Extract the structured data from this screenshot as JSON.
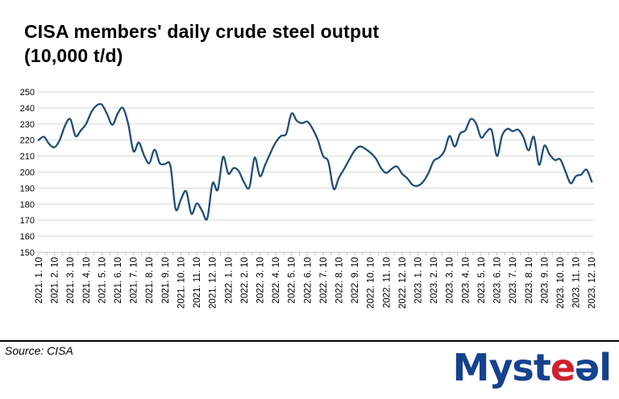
{
  "header": {
    "title_line1": "CISA members' daily crude steel output",
    "title_line2": "(10,000 t/d)"
  },
  "footer": {
    "source_label": "Source: CISA",
    "logo": {
      "part_myst": "Myst",
      "part_e_red": "e",
      "part_e_blue": "ə",
      "part_l": "l",
      "blue": "#15418e",
      "red": "#cf2030"
    }
  },
  "chart_data": {
    "type": "line",
    "title": "CISA members' daily crude steel output (10,000 t/d)",
    "xlabel": "",
    "ylabel": "",
    "ylim": [
      150,
      250
    ],
    "yticks": [
      150,
      160,
      170,
      180,
      190,
      200,
      210,
      220,
      230,
      240,
      250
    ],
    "grid": "horizontal-only",
    "legend_position": "none",
    "line_color": "#1f4e79",
    "gridline_color": "#d9d9d9",
    "axis_color": "#bfbfbf",
    "x_tick_labels": [
      "2021. 1. 10",
      "2021. 2. 10",
      "2021. 3. 10",
      "2021. 4. 10",
      "2021. 5. 10",
      "2021. 6. 10",
      "2021. 7. 10",
      "2021. 8. 10",
      "2021. 9. 10",
      "2021. 10. 10",
      "2021. 11. 10",
      "2021. 12. 10",
      "2022. 1. 10",
      "2022. 2. 10",
      "2022. 3. 10",
      "2022. 4. 10",
      "2022. 5. 10",
      "2022. 6. 10",
      "2022. 7. 10",
      "2022. 8. 10",
      "2022. 9. 10",
      "2022. 10. 10",
      "2022. 11. 10",
      "2022. 12. 10",
      "2023. 1. 10",
      "2023. 2. 10",
      "2023. 3. 10",
      "2023. 4. 10",
      "2023. 5. 10",
      "2023. 6. 10",
      "2023. 7. 10",
      "2023. 8. 10",
      "2023. 9. 10",
      "2023. 10. 10",
      "2023. 11. 10",
      "2023. 12. 10"
    ],
    "points_per_month": 3,
    "series": [
      {
        "name": "CISA members' daily crude steel output (10,000 t/d)",
        "dates": [
          "2021.1.10",
          "2021.1.20",
          "2021.1.31",
          "2021.2.10",
          "2021.2.20",
          "2021.2.28",
          "2021.3.10",
          "2021.3.20",
          "2021.3.31",
          "2021.4.10",
          "2021.4.20",
          "2021.4.30",
          "2021.5.10",
          "2021.5.20",
          "2021.5.31",
          "2021.6.10",
          "2021.6.20",
          "2021.6.30",
          "2021.7.10",
          "2021.7.20",
          "2021.7.31",
          "2021.8.10",
          "2021.8.20",
          "2021.8.31",
          "2021.9.10",
          "2021.9.20",
          "2021.9.30",
          "2021.10.10",
          "2021.10.20",
          "2021.10.31",
          "2021.11.10",
          "2021.11.20",
          "2021.11.30",
          "2021.12.10",
          "2021.12.20",
          "2021.12.31",
          "2022.1.10",
          "2022.1.20",
          "2022.1.31",
          "2022.2.10",
          "2022.2.20",
          "2022.2.28",
          "2022.3.10",
          "2022.3.20",
          "2022.3.31",
          "2022.4.10",
          "2022.4.20",
          "2022.4.30",
          "2022.5.10",
          "2022.5.20",
          "2022.5.31",
          "2022.6.10",
          "2022.6.20",
          "2022.6.30",
          "2022.7.10",
          "2022.7.20",
          "2022.7.31",
          "2022.8.10",
          "2022.8.20",
          "2022.8.31",
          "2022.9.10",
          "2022.9.20",
          "2022.9.30",
          "2022.10.10",
          "2022.10.20",
          "2022.10.31",
          "2022.11.10",
          "2022.11.20",
          "2022.11.30",
          "2022.12.10",
          "2022.12.20",
          "2022.12.31",
          "2023.1.10",
          "2023.1.20",
          "2023.1.31",
          "2023.2.10",
          "2023.2.20",
          "2023.2.28",
          "2023.3.10",
          "2023.3.20",
          "2023.3.31",
          "2023.4.10",
          "2023.4.20",
          "2023.4.30",
          "2023.5.10",
          "2023.5.20",
          "2023.5.31",
          "2023.6.10",
          "2023.6.20",
          "2023.6.30",
          "2023.7.10",
          "2023.7.20",
          "2023.7.31",
          "2023.8.10",
          "2023.8.20",
          "2023.8.31",
          "2023.9.10",
          "2023.9.20",
          "2023.9.30",
          "2023.10.10",
          "2023.10.20",
          "2023.10.31",
          "2023.11.10",
          "2023.11.20",
          "2023.11.30",
          "2023.12.10"
        ],
        "values": [
          220,
          222,
          217.5,
          215.5,
          220,
          229,
          233,
          222.5,
          226,
          230,
          237.5,
          241.5,
          242,
          236,
          229.5,
          236.5,
          240,
          230,
          213,
          218.5,
          210.5,
          205.5,
          214,
          205.5,
          205,
          204,
          177,
          183,
          188,
          174,
          180.5,
          176,
          171,
          193,
          189,
          209.5,
          199,
          202.5,
          200.5,
          193.5,
          190.5,
          209,
          197.5,
          204.5,
          212,
          218.5,
          222.5,
          224,
          236.5,
          232,
          230.5,
          231.5,
          227,
          220,
          210,
          206.5,
          189.5,
          196.5,
          202,
          208,
          213.5,
          216,
          214.5,
          212,
          208.5,
          202.5,
          199.5,
          202,
          203.5,
          199,
          196,
          192,
          191.5,
          194,
          199.5,
          207,
          209,
          213,
          222.5,
          216,
          224,
          226,
          233,
          230.5,
          221.5,
          225,
          226,
          210,
          223,
          227,
          225.5,
          226.5,
          222,
          213.5,
          222,
          204.5,
          216.5,
          211,
          207.5,
          208,
          200.5,
          193,
          197.5,
          198.5,
          201.5,
          194
        ]
      }
    ]
  }
}
